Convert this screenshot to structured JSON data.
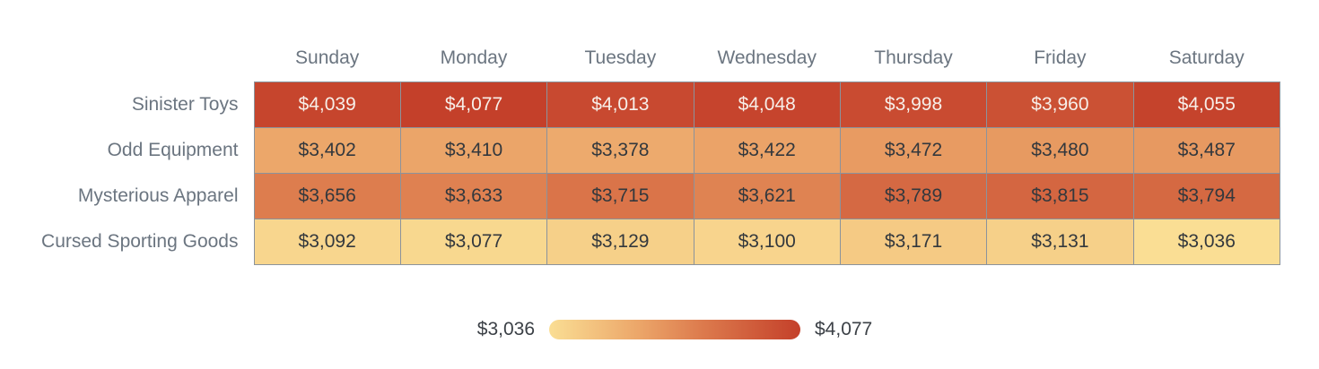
{
  "chart_data": {
    "type": "heatmap",
    "columns": [
      "Sunday",
      "Monday",
      "Tuesday",
      "Wednesday",
      "Thursday",
      "Friday",
      "Saturday"
    ],
    "rows": [
      "Sinister Toys",
      "Odd Equipment",
      "Mysterious Apparel",
      "Cursed Sporting Goods"
    ],
    "values": [
      [
        4039,
        4077,
        4013,
        4048,
        3998,
        3960,
        4055
      ],
      [
        3402,
        3410,
        3378,
        3422,
        3472,
        3480,
        3487
      ],
      [
        3656,
        3633,
        3715,
        3621,
        3789,
        3815,
        3794
      ],
      [
        3092,
        3077,
        3129,
        3100,
        3171,
        3131,
        3036
      ]
    ],
    "min": 3036,
    "max": 4077,
    "value_prefix": "$",
    "legend": {
      "min_label": "$3,036",
      "max_label": "$4,077"
    },
    "colors": {
      "scale_stops": [
        {
          "t": 0.0,
          "color": "#FADE94"
        },
        {
          "t": 0.35,
          "color": "#ECA76A"
        },
        {
          "t": 0.6,
          "color": "#DD7C4E"
        },
        {
          "t": 1.0,
          "color": "#C4402A"
        }
      ],
      "grid_line": "#8B939C",
      "header_text": "#6B7580",
      "row_label_text": "#6B7580",
      "cell_text_dark": "#33383D",
      "cell_text_light": "#F7EFE9",
      "legend_text": "#3B4046",
      "background": "#FFFFFF",
      "light_text_threshold": 0.8
    },
    "grid_on": true,
    "legend_position": "bottom-center"
  }
}
